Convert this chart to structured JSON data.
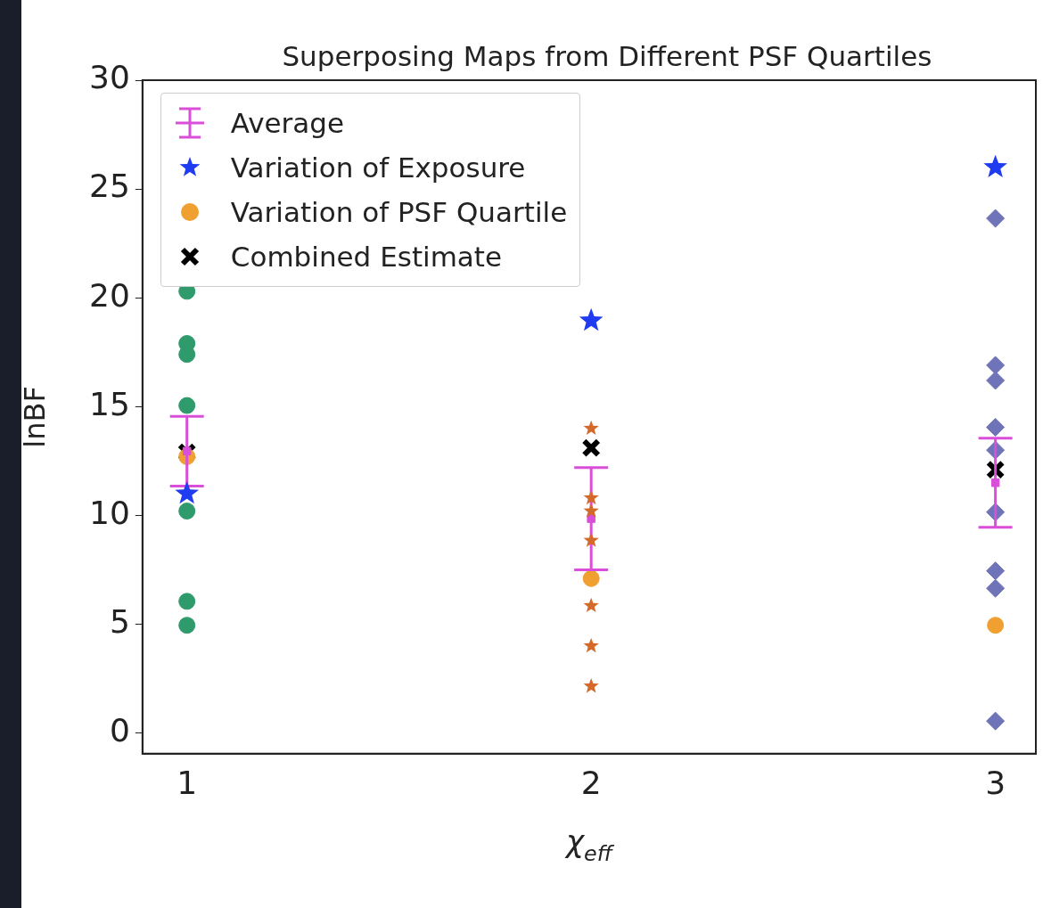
{
  "chart_data": {
    "type": "scatter",
    "title": "Superposing Maps from Different PSF Quartiles",
    "xlabel": "χ$_{eff}$",
    "ylabel": "lnBF",
    "xlim": [
      0.89,
      3.1
    ],
    "xticks": [
      1,
      2,
      3
    ],
    "ylim": [
      -0.95,
      30
    ],
    "yticks": [
      0,
      5,
      10,
      15,
      20,
      25,
      30
    ],
    "grid": false,
    "legend": "top left",
    "series": [
      {
        "color": "#2f9a6c",
        "marker": "circle",
        "x": [
          1,
          1,
          1,
          1,
          1,
          1,
          1
        ],
        "values": [
          20.3,
          17.9,
          17.4,
          15.05,
          10.2,
          6.05,
          4.95
        ]
      },
      {
        "color": "#d4692a",
        "marker": "star",
        "x": [
          2,
          2,
          2,
          2,
          2,
          2,
          2
        ],
        "values": [
          14.0,
          10.8,
          10.2,
          8.85,
          5.85,
          4.0,
          2.15
        ]
      },
      {
        "color": "#6f73b8",
        "marker": "diamond",
        "x": [
          3,
          3,
          3,
          3,
          3,
          3,
          3,
          3,
          3
        ],
        "values": [
          23.65,
          16.9,
          16.2,
          14.05,
          13.0,
          10.15,
          7.45,
          6.65,
          0.55
        ]
      },
      {
        "name": "Average",
        "color": "#d94fd9",
        "marker": "square",
        "x": [
          1,
          2,
          3
        ],
        "values": [
          12.95,
          9.85,
          11.5
        ],
        "errors": [
          1.6,
          2.35,
          2.05
        ]
      },
      {
        "name": "Variation of Exposure",
        "color": "#1f3cf0",
        "marker": "star",
        "x": [
          1,
          2,
          3
        ],
        "values": [
          11.0,
          18.95,
          26.0
        ]
      },
      {
        "name": "Variation of PSF Quartile",
        "color": "#f0a030",
        "marker": "circle",
        "x": [
          1,
          2,
          3
        ],
        "values": [
          12.7,
          7.1,
          4.95
        ]
      },
      {
        "name": "Combined Estimate",
        "color": "#000000",
        "marker": "cross",
        "x": [
          1,
          2,
          3
        ],
        "values": [
          12.9,
          13.1,
          12.1
        ]
      }
    ]
  }
}
